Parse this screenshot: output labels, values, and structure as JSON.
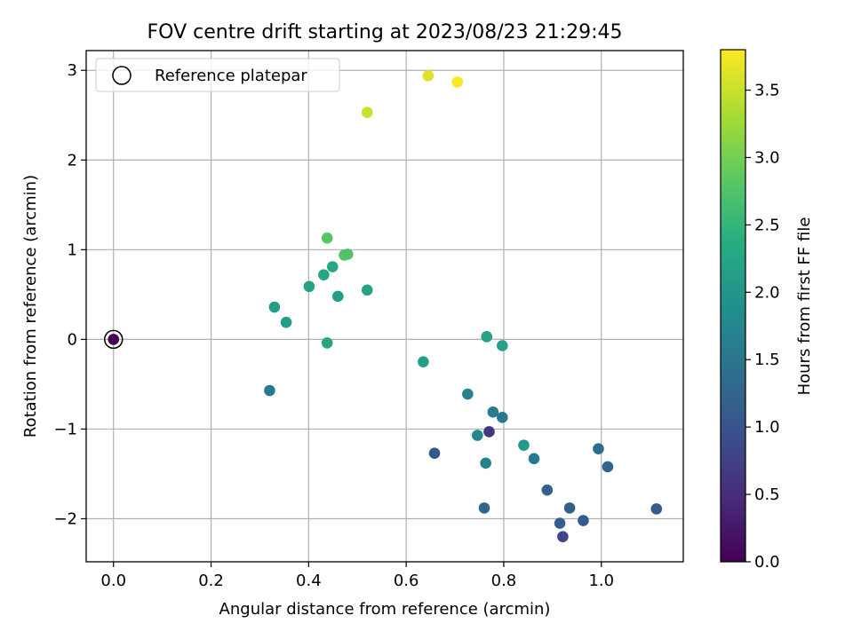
{
  "chart_data": {
    "type": "scatter",
    "title": "FOV centre drift starting at 2023/08/23 21:29:45",
    "xlabel": "Angular distance from reference (arcmin)",
    "ylabel": "Rotation from reference (arcmin)",
    "xlim": [
      -0.056,
      1.168
    ],
    "ylim": [
      -2.48,
      3.22
    ],
    "xticks": [
      0.0,
      0.2,
      0.4,
      0.6,
      0.8,
      1.0
    ],
    "xtick_labels": [
      "0.0",
      "0.2",
      "0.4",
      "0.6",
      "0.8",
      "1.0"
    ],
    "yticks": [
      -2,
      -1,
      0,
      1,
      2,
      3
    ],
    "ytick_labels": [
      "−2",
      "−1",
      "0",
      "1",
      "2",
      "3"
    ],
    "grid": true,
    "legend": {
      "placement": "top-left",
      "entries": [
        "Reference platepar"
      ]
    },
    "colorbar": {
      "label": "Hours from first FF file",
      "min": 0.0,
      "max": 3.8,
      "colormap": "viridis",
      "ticks": [
        0.0,
        0.5,
        1.0,
        1.5,
        2.0,
        2.5,
        3.0,
        3.5
      ],
      "tick_labels": [
        "0.0",
        "0.5",
        "1.0",
        "1.5",
        "2.0",
        "2.5",
        "3.0",
        "3.5"
      ]
    },
    "reference": {
      "x": 0.0,
      "y": 0.0,
      "c": 0.0,
      "marker": "open-circle"
    },
    "points": [
      {
        "x": 0.645,
        "y": 2.94,
        "c": 3.62
      },
      {
        "x": 0.705,
        "y": 2.87,
        "c": 3.78
      },
      {
        "x": 0.52,
        "y": 2.53,
        "c": 3.52
      },
      {
        "x": 0.438,
        "y": 1.13,
        "c": 2.8
      },
      {
        "x": 0.473,
        "y": 0.94,
        "c": 2.78
      },
      {
        "x": 0.48,
        "y": 0.95,
        "c": 2.75
      },
      {
        "x": 0.449,
        "y": 0.81,
        "c": 2.3
      },
      {
        "x": 0.431,
        "y": 0.72,
        "c": 2.25
      },
      {
        "x": 0.401,
        "y": 0.59,
        "c": 2.2
      },
      {
        "x": 0.52,
        "y": 0.55,
        "c": 2.25
      },
      {
        "x": 0.46,
        "y": 0.48,
        "c": 2.15
      },
      {
        "x": 0.33,
        "y": 0.36,
        "c": 2.15
      },
      {
        "x": 0.354,
        "y": 0.19,
        "c": 2.1
      },
      {
        "x": 0.438,
        "y": -0.04,
        "c": 2.25
      },
      {
        "x": 0.32,
        "y": -0.57,
        "c": 1.55
      },
      {
        "x": 0.635,
        "y": -0.25,
        "c": 2.15
      },
      {
        "x": 0.765,
        "y": 0.03,
        "c": 2.2
      },
      {
        "x": 0.797,
        "y": -0.07,
        "c": 2.2
      },
      {
        "x": 0.726,
        "y": -0.61,
        "c": 1.7
      },
      {
        "x": 0.778,
        "y": -0.81,
        "c": 1.6
      },
      {
        "x": 0.797,
        "y": -0.87,
        "c": 1.55
      },
      {
        "x": 0.77,
        "y": -1.03,
        "c": 0.6
      },
      {
        "x": 0.746,
        "y": -1.07,
        "c": 1.75
      },
      {
        "x": 0.658,
        "y": -1.27,
        "c": 1.05
      },
      {
        "x": 0.763,
        "y": -1.38,
        "c": 1.7
      },
      {
        "x": 0.841,
        "y": -1.18,
        "c": 2.05
      },
      {
        "x": 0.862,
        "y": -1.33,
        "c": 1.55
      },
      {
        "x": 0.76,
        "y": -1.88,
        "c": 1.25
      },
      {
        "x": 0.889,
        "y": -1.68,
        "c": 1.2
      },
      {
        "x": 0.935,
        "y": -1.88,
        "c": 1.15
      },
      {
        "x": 0.915,
        "y": -2.05,
        "c": 1.15
      },
      {
        "x": 0.921,
        "y": -2.2,
        "c": 0.8
      },
      {
        "x": 0.963,
        "y": -2.02,
        "c": 1.1
      },
      {
        "x": 0.994,
        "y": -1.22,
        "c": 1.35
      },
      {
        "x": 1.013,
        "y": -1.42,
        "c": 1.25
      },
      {
        "x": 1.113,
        "y": -1.89,
        "c": 1.1
      }
    ]
  }
}
